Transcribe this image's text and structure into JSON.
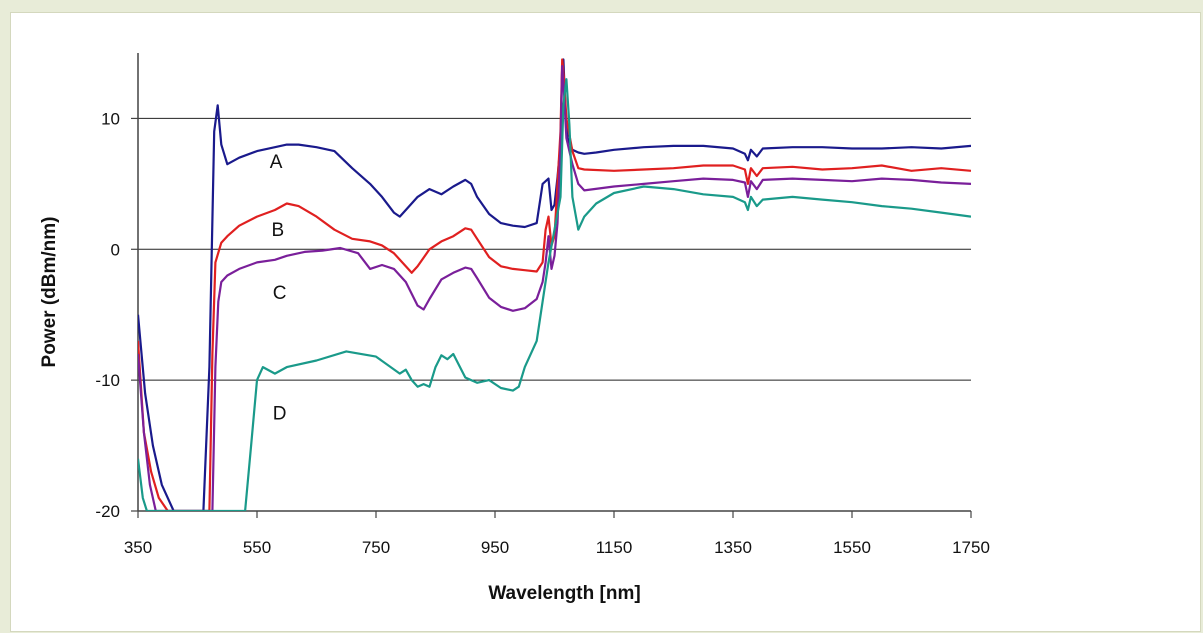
{
  "caption": "",
  "chart_data": {
    "type": "line",
    "title": "",
    "xlabel": "Wavelength [nm]",
    "ylabel": "Power (dBm/nm)",
    "xlim": [
      350,
      1750
    ],
    "ylim": [
      -20,
      15
    ],
    "xticks": [
      350,
      550,
      750,
      950,
      1150,
      1350,
      1550,
      1750
    ],
    "yticks": [
      -20,
      -10,
      0,
      10
    ],
    "grid": "horizontal",
    "series": [
      {
        "name": "A",
        "color": "#1a1a8c",
        "label_at": [
          582,
          6.2
        ],
        "x": [
          350,
          362,
          375,
          390,
          410,
          430,
          450,
          460,
          470,
          478,
          484,
          490,
          500,
          520,
          550,
          580,
          600,
          620,
          650,
          680,
          710,
          740,
          760,
          780,
          790,
          800,
          820,
          840,
          860,
          880,
          900,
          910,
          920,
          940,
          960,
          980,
          1000,
          1020,
          1030,
          1040,
          1045,
          1050,
          1055,
          1060,
          1063,
          1065,
          1068,
          1072,
          1080,
          1090,
          1100,
          1120,
          1150,
          1200,
          1250,
          1300,
          1350,
          1370,
          1375,
          1380,
          1390,
          1400,
          1450,
          1500,
          1550,
          1600,
          1650,
          1700,
          1750
        ],
        "y": [
          -5,
          -11,
          -15,
          -18,
          -20,
          -20,
          -20,
          -20,
          -9,
          9,
          11,
          8,
          6.5,
          7,
          7.5,
          7.8,
          8,
          8,
          7.8,
          7.5,
          6.2,
          5,
          4,
          2.8,
          2.5,
          3,
          4,
          4.6,
          4.2,
          4.8,
          5.3,
          5,
          4,
          2.7,
          2,
          1.8,
          1.7,
          2,
          5,
          5.4,
          3,
          3.4,
          5.5,
          8,
          14,
          14.5,
          11,
          8.5,
          7.6,
          7.4,
          7.3,
          7.4,
          7.6,
          7.8,
          7.9,
          7.9,
          7.7,
          7.3,
          6.8,
          7.6,
          7.1,
          7.7,
          7.8,
          7.8,
          7.7,
          7.7,
          7.8,
          7.7,
          7.9
        ]
      },
      {
        "name": "B",
        "color": "#e02020",
        "label_at": [
          585,
          1.0
        ],
        "x": [
          350,
          360,
          372,
          385,
          400,
          420,
          440,
          455,
          462,
          470,
          475,
          480,
          490,
          500,
          520,
          550,
          580,
          600,
          620,
          650,
          680,
          710,
          740,
          760,
          780,
          800,
          810,
          820,
          840,
          860,
          880,
          900,
          910,
          920,
          940,
          960,
          980,
          1000,
          1020,
          1030,
          1035,
          1040,
          1045,
          1050,
          1055,
          1060,
          1063,
          1066,
          1070,
          1080,
          1090,
          1100,
          1150,
          1200,
          1250,
          1300,
          1350,
          1370,
          1375,
          1380,
          1390,
          1400,
          1450,
          1500,
          1550,
          1600,
          1650,
          1700,
          1750
        ],
        "y": [
          -7,
          -14,
          -17,
          -19,
          -20,
          -20,
          -20,
          -20,
          -20,
          -20,
          -8,
          -1,
          0.5,
          1,
          1.8,
          2.5,
          3,
          3.5,
          3.3,
          2.5,
          1.5,
          0.8,
          0.6,
          0.3,
          -0.3,
          -1.3,
          -1.8,
          -1.3,
          0,
          0.6,
          1,
          1.6,
          1.5,
          0.8,
          -0.6,
          -1.3,
          -1.5,
          -1.6,
          -1.7,
          -1,
          1.5,
          2.5,
          0.3,
          1,
          5,
          9,
          14.5,
          13,
          10,
          7.5,
          6.2,
          6.1,
          6,
          6.1,
          6.2,
          6.4,
          6.4,
          6.1,
          5,
          6.2,
          5.6,
          6.2,
          6.3,
          6.1,
          6.2,
          6.4,
          6,
          6.2,
          6
        ]
      },
      {
        "name": "C",
        "color": "#7a1f9a",
        "label_at": [
          588,
          -3.8
        ],
        "x": [
          350,
          360,
          370,
          380,
          395,
          410,
          425,
          440,
          460,
          470,
          475,
          480,
          485,
          490,
          500,
          520,
          550,
          580,
          600,
          630,
          660,
          690,
          720,
          740,
          760,
          780,
          800,
          820,
          830,
          840,
          860,
          880,
          900,
          910,
          920,
          940,
          960,
          980,
          1000,
          1020,
          1030,
          1035,
          1040,
          1045,
          1050,
          1055,
          1060,
          1063,
          1066,
          1070,
          1080,
          1090,
          1100,
          1150,
          1200,
          1250,
          1300,
          1350,
          1370,
          1375,
          1380,
          1390,
          1400,
          1450,
          1500,
          1550,
          1600,
          1650,
          1700,
          1750
        ],
        "y": [
          -8,
          -14,
          -18,
          -20,
          -20,
          -20,
          -20,
          -20,
          -20,
          -20,
          -20,
          -9,
          -4,
          -2.5,
          -2,
          -1.5,
          -1,
          -0.8,
          -0.5,
          -0.2,
          -0.1,
          0.1,
          -0.3,
          -1.5,
          -1.2,
          -1.5,
          -2.5,
          -4.3,
          -4.6,
          -3.8,
          -2.3,
          -1.8,
          -1.4,
          -1.5,
          -2.2,
          -3.7,
          -4.4,
          -4.7,
          -4.5,
          -3.8,
          -2.5,
          -1,
          1,
          -1.5,
          -0.5,
          2,
          8,
          14,
          12,
          8.5,
          6.5,
          5,
          4.5,
          4.8,
          5,
          5.2,
          5.4,
          5.3,
          5.1,
          4,
          5.2,
          4.6,
          5.3,
          5.4,
          5.3,
          5.2,
          5.4,
          5.3,
          5.1,
          5
        ]
      },
      {
        "name": "D",
        "color": "#1a9a8a",
        "label_at": [
          588,
          -13.0
        ],
        "x": [
          350,
          358,
          365,
          375,
          390,
          410,
          430,
          450,
          480,
          510,
          520,
          530,
          540,
          550,
          560,
          580,
          600,
          650,
          700,
          750,
          790,
          800,
          810,
          820,
          830,
          840,
          850,
          860,
          870,
          880,
          900,
          920,
          940,
          960,
          980,
          990,
          1000,
          1020,
          1030,
          1040,
          1050,
          1060,
          1065,
          1070,
          1075,
          1080,
          1090,
          1100,
          1120,
          1150,
          1200,
          1250,
          1300,
          1350,
          1370,
          1375,
          1380,
          1390,
          1400,
          1450,
          1500,
          1550,
          1600,
          1650,
          1700,
          1750
        ],
        "y": [
          -16,
          -19,
          -20,
          -20,
          -20,
          -20,
          -20,
          -20,
          -20,
          -20,
          -20,
          -20,
          -15,
          -10,
          -9,
          -9.5,
          -9,
          -8.5,
          -7.8,
          -8.2,
          -9.5,
          -9.2,
          -10,
          -10.5,
          -10.3,
          -10.5,
          -9,
          -8.1,
          -8.4,
          -8,
          -9.8,
          -10.2,
          -10,
          -10.6,
          -10.8,
          -10.5,
          -9,
          -7,
          -4,
          -1,
          1.5,
          4,
          11,
          13,
          9.5,
          4,
          1.5,
          2.5,
          3.5,
          4.3,
          4.8,
          4.6,
          4.2,
          4,
          3.6,
          3,
          4,
          3.3,
          3.8,
          4,
          3.8,
          3.6,
          3.3,
          3.1,
          2.8,
          2.5
        ]
      }
    ]
  }
}
